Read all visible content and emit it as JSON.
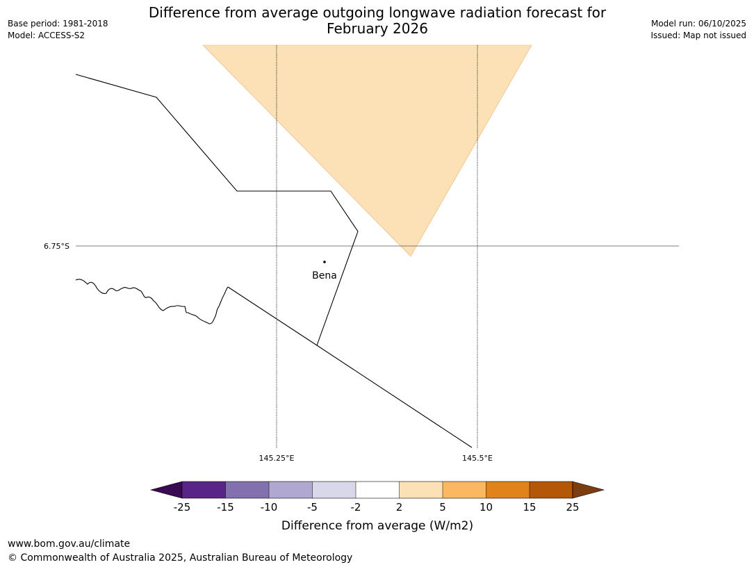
{
  "header": {
    "title_line1": "Difference from average outgoing longwave radiation forecast for",
    "title_line2": "February 2026",
    "base_period": "Base period: 1981-2018",
    "model": "Model: ACCESS-S2",
    "model_run": "Model run: 06/10/2025",
    "issued": "Issued: Map not issued"
  },
  "map": {
    "lat_label": "6.75°S",
    "lon_labels": [
      "145.25°E",
      "145.5°E"
    ],
    "place": "Bena",
    "anomaly_fill_color": "#fce0b6",
    "anomaly_category": "2 to 5"
  },
  "legend": {
    "title": "Difference from average (W/m2)",
    "ticks": [
      "-25",
      "-15",
      "-10",
      "-5",
      "-2",
      "2",
      "5",
      "10",
      "15",
      "25"
    ],
    "colors": [
      "#3a0a52",
      "#582488",
      "#8271ae",
      "#b1a8d2",
      "#d9d8ea",
      "#ffffff",
      "#fce0b6",
      "#fbb862",
      "#e0831a",
      "#b45708",
      "#7c3d10"
    ]
  },
  "footer": {
    "url": "www.bom.gov.au/climate",
    "copyright": "© Commonwealth of Australia 2025, Australian Bureau of Meteorology"
  }
}
